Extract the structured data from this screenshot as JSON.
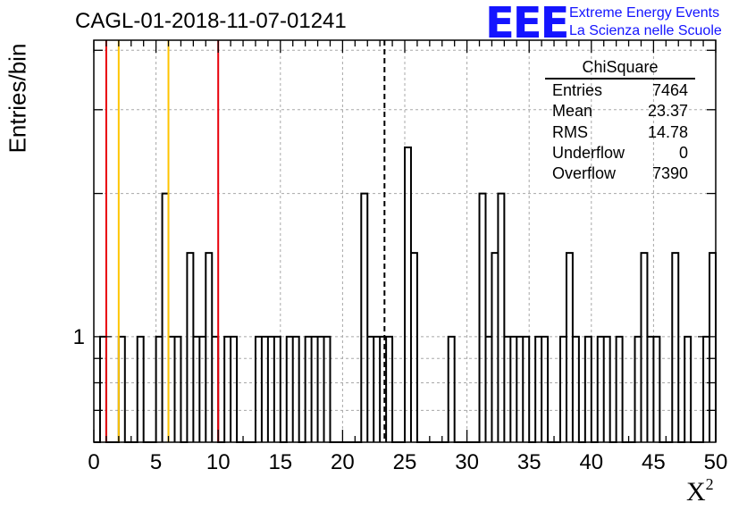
{
  "header": {
    "title": "CAGL-01-2018-11-07-01241",
    "logo_mark": "EEE",
    "logo_line1": "Extreme Energy Events",
    "logo_line2": "La Scienza nelle Scuole"
  },
  "stats_box": {
    "title": "ChiSquare",
    "rows": [
      {
        "label": "Entries",
        "value": "7464"
      },
      {
        "label": "Mean",
        "value": "23.37"
      },
      {
        "label": "RMS",
        "value": "14.78"
      },
      {
        "label": "Underflow",
        "value": "0"
      },
      {
        "label": "Overflow",
        "value": "7390"
      }
    ]
  },
  "chart_data": {
    "type": "histogram",
    "xlabel": "X²",
    "ylabel": "Entries/bin",
    "xlim": [
      0,
      50
    ],
    "ylim": [
      0.6,
      4.2
    ],
    "yscale": "log",
    "grid": true,
    "bin_width": 0.5,
    "x_ticks": [
      0,
      5,
      10,
      15,
      20,
      25,
      30,
      35,
      40,
      45,
      50
    ],
    "y_tick_labels": [
      {
        "value": 1,
        "label": "1"
      }
    ],
    "bins": [
      {
        "x": 0.5,
        "y": 1
      },
      {
        "x": 2.0,
        "y": 1
      },
      {
        "x": 3.5,
        "y": 1
      },
      {
        "x": 5.0,
        "y": 1
      },
      {
        "x": 5.5,
        "y": 2
      },
      {
        "x": 6.0,
        "y": 1
      },
      {
        "x": 6.5,
        "y": 1
      },
      {
        "x": 7.5,
        "y": 1.5
      },
      {
        "x": 8.0,
        "y": 1
      },
      {
        "x": 8.5,
        "y": 1
      },
      {
        "x": 9.0,
        "y": 1.5
      },
      {
        "x": 9.5,
        "y": 1
      },
      {
        "x": 10.5,
        "y": 1
      },
      {
        "x": 11.0,
        "y": 1
      },
      {
        "x": 13.0,
        "y": 1
      },
      {
        "x": 13.5,
        "y": 1
      },
      {
        "x": 14.0,
        "y": 1
      },
      {
        "x": 14.5,
        "y": 1
      },
      {
        "x": 15.5,
        "y": 1
      },
      {
        "x": 16.0,
        "y": 1
      },
      {
        "x": 17.0,
        "y": 1
      },
      {
        "x": 17.5,
        "y": 1
      },
      {
        "x": 18.0,
        "y": 1
      },
      {
        "x": 18.5,
        "y": 1
      },
      {
        "x": 21.5,
        "y": 2
      },
      {
        "x": 22.0,
        "y": 1
      },
      {
        "x": 22.5,
        "y": 1
      },
      {
        "x": 23.0,
        "y": 1
      },
      {
        "x": 23.5,
        "y": 1
      },
      {
        "x": 25.0,
        "y": 2.5
      },
      {
        "x": 25.5,
        "y": 1.5
      },
      {
        "x": 28.5,
        "y": 1
      },
      {
        "x": 31.0,
        "y": 2
      },
      {
        "x": 31.5,
        "y": 1
      },
      {
        "x": 32.0,
        "y": 1.5
      },
      {
        "x": 32.5,
        "y": 2
      },
      {
        "x": 33.0,
        "y": 1
      },
      {
        "x": 33.5,
        "y": 1
      },
      {
        "x": 34.0,
        "y": 1
      },
      {
        "x": 34.5,
        "y": 1
      },
      {
        "x": 35.5,
        "y": 1
      },
      {
        "x": 36.0,
        "y": 1
      },
      {
        "x": 37.5,
        "y": 1
      },
      {
        "x": 38.0,
        "y": 1.5
      },
      {
        "x": 38.5,
        "y": 1
      },
      {
        "x": 39.5,
        "y": 1
      },
      {
        "x": 40.5,
        "y": 1
      },
      {
        "x": 41.0,
        "y": 1
      },
      {
        "x": 42.0,
        "y": 1
      },
      {
        "x": 43.5,
        "y": 1
      },
      {
        "x": 44.0,
        "y": 1.5
      },
      {
        "x": 44.5,
        "y": 1
      },
      {
        "x": 45.0,
        "y": 1
      },
      {
        "x": 46.5,
        "y": 1.5
      },
      {
        "x": 47.5,
        "y": 1
      },
      {
        "x": 49.0,
        "y": 1
      },
      {
        "x": 49.5,
        "y": 1.5
      }
    ],
    "vertical_lines": [
      {
        "x": 1.0,
        "color": "#e8000b",
        "style": "solid"
      },
      {
        "x": 2.0,
        "color": "#ffc400",
        "style": "solid"
      },
      {
        "x": 6.0,
        "color": "#ffc400",
        "style": "solid"
      },
      {
        "x": 10.0,
        "color": "#e8000b",
        "style": "solid"
      },
      {
        "x": 23.37,
        "color": "#000000",
        "style": "dashed"
      }
    ]
  }
}
